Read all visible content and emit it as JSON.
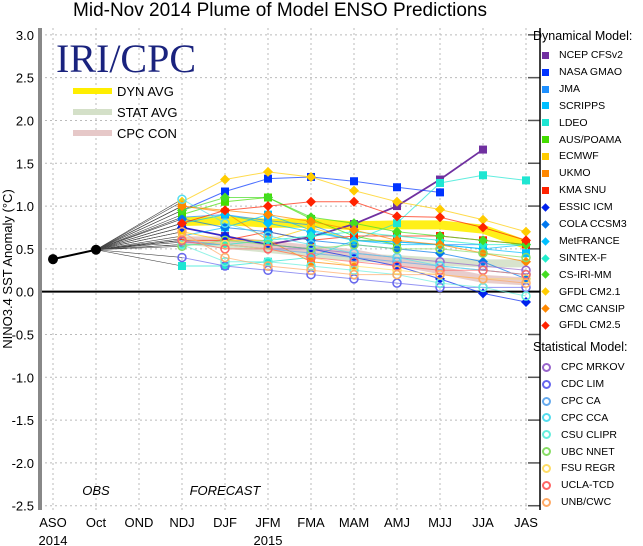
{
  "chart_data": {
    "type": "line",
    "title": "Mid-Nov 2014 Plume of Model ENSO Predictions",
    "ylabel": "NINO3.4 SST Anomaly (°C)",
    "xlabel": "",
    "ylim": [
      -2.55,
      3.08
    ],
    "yticks": [
      "3.0",
      "2.5",
      "2.0",
      "1.5",
      "1.0",
      "0.5",
      "0.0",
      "-0.5",
      "-1.0",
      "-1.5",
      "-2.0",
      "-2.5"
    ],
    "ytick_values": [
      3.0,
      2.5,
      2.0,
      1.5,
      1.0,
      0.5,
      0.0,
      -0.5,
      -1.0,
      -1.5,
      -2.0,
      -2.5
    ],
    "categories": [
      "ASO",
      "Oct",
      "OND",
      "NDJ",
      "DJF",
      "JFM",
      "FMA",
      "MAM",
      "AMJ",
      "MJJ",
      "JJA",
      "JAS"
    ],
    "year_labels": [
      {
        "text": "2014",
        "at": "ASO"
      },
      {
        "text": "2015",
        "at": "JFM"
      }
    ],
    "grid": true,
    "logo": "IRI/CPC",
    "annotations": {
      "obs": "OBS",
      "forecast": "FORECAST"
    },
    "observed": {
      "name": "Observed",
      "color": "#000000",
      "values": [
        0.38,
        0.49
      ]
    },
    "averages": [
      {
        "name": "DYN AVG",
        "color": "#ffee00",
        "values": [
          0.82,
          0.83,
          0.8,
          0.8,
          0.77,
          0.78,
          0.78,
          0.73,
          0.55
        ]
      },
      {
        "name": "STAT AVG",
        "color": "#d4e0c8",
        "values": [
          0.6,
          0.55,
          0.5,
          0.45,
          0.4,
          0.38,
          0.35,
          0.33,
          0.33
        ]
      },
      {
        "name": "CPC CON",
        "color": "#e6c8c8",
        "values": [
          0.6,
          0.6,
          0.55,
          0.5,
          0.45,
          0.35,
          0.25,
          0.15,
          0.12
        ]
      }
    ],
    "dynamical_title": "Dynamical Model:",
    "statistical_title": "Statistical Model:",
    "forecast_start": "NDJ",
    "dynamical": [
      {
        "name": "NCEP CFSv2",
        "color": "#7030a0",
        "marker": "square",
        "values": [
          0.75,
          0.65,
          0.55,
          0.64,
          0.79,
          1.0,
          1.31,
          1.66,
          null
        ]
      },
      {
        "name": "NASA GMAO",
        "color": "#0033ff",
        "marker": "square",
        "values": [
          0.95,
          1.17,
          1.32,
          1.34,
          1.29,
          1.22,
          1.16,
          null,
          null
        ]
      },
      {
        "name": "JMA",
        "color": "#1e90ff",
        "marker": "square",
        "values": [
          0.87,
          0.9,
          0.83,
          0.78,
          0.6,
          0.58,
          0.55,
          0.55,
          null
        ]
      },
      {
        "name": "SCRIPPS",
        "color": "#00bfff",
        "marker": "square",
        "values": [
          0.65,
          0.75,
          0.9,
          0.72,
          0.6,
          0.55,
          0.55,
          0.5,
          0.45
        ]
      },
      {
        "name": "LDEO",
        "color": "#1ee6d2",
        "marker": "square",
        "values": [
          0.3,
          0.3,
          0.35,
          0.4,
          0.6,
          0.8,
          1.27,
          1.36,
          1.3
        ]
      },
      {
        "name": "AUS/POAMA",
        "color": "#44dd00",
        "marker": "square",
        "values": [
          0.9,
          1.05,
          1.1,
          0.85,
          0.65,
          0.55,
          null,
          null,
          null
        ]
      },
      {
        "name": "ECMWF",
        "color": "#ffcc00",
        "marker": "square",
        "values": [
          0.7,
          0.6,
          0.6,
          0.75,
          0.6,
          0.6,
          null,
          null,
          null
        ]
      },
      {
        "name": "UKMO",
        "color": "#ff8800",
        "marker": "square",
        "values": [
          1.0,
          0.93,
          0.6,
          0.35,
          0.3,
          null,
          null,
          null,
          null
        ]
      },
      {
        "name": "KMA SNU",
        "color": "#ff2200",
        "marker": "square",
        "values": [
          0.6,
          0.6,
          0.7,
          0.6,
          0.65,
          0.65,
          0.65,
          0.6,
          0.55
        ]
      },
      {
        "name": "ESSIC ICM",
        "color": "#0022ee",
        "marker": "diamond",
        "values": [
          0.75,
          0.65,
          0.55,
          0.5,
          0.4,
          0.3,
          0.15,
          -0.02,
          -0.12
        ]
      },
      {
        "name": "COLA CCSM3",
        "color": "#0077ee",
        "marker": "diamond",
        "values": [
          0.85,
          0.75,
          0.7,
          0.6,
          0.55,
          0.5,
          0.45,
          0.35,
          0.15
        ]
      },
      {
        "name": "MetFRANCE",
        "color": "#00c0ff",
        "marker": "diamond",
        "values": [
          0.8,
          0.9,
          0.8,
          0.7,
          0.6,
          0.58,
          0.55,
          0.5,
          0.55
        ]
      },
      {
        "name": "SINTEX-F",
        "color": "#22eecc",
        "marker": "diamond",
        "values": [
          0.55,
          0.55,
          0.6,
          0.65,
          0.7,
          0.65,
          0.6,
          0.55,
          0.55
        ]
      },
      {
        "name": "CS-IRI-MM",
        "color": "#44dd22",
        "marker": "diamond",
        "values": [
          0.95,
          1.1,
          1.1,
          0.87,
          0.8,
          0.7,
          0.65,
          0.6,
          0.55
        ]
      },
      {
        "name": "GFDL CM2.1",
        "color": "#ffcc00",
        "marker": "diamond",
        "values": [
          1.05,
          1.31,
          1.4,
          1.34,
          1.18,
          1.05,
          0.96,
          0.84,
          0.7
        ]
      },
      {
        "name": "CMC CANSIP",
        "color": "#ff8800",
        "marker": "diamond",
        "values": [
          1.0,
          0.95,
          0.9,
          0.82,
          0.72,
          0.6,
          0.55,
          0.45,
          0.35
        ]
      },
      {
        "name": "GFDL CM2.5",
        "color": "#ff2200",
        "marker": "diamond",
        "values": [
          0.8,
          0.95,
          1.0,
          1.05,
          1.05,
          0.88,
          0.87,
          0.75,
          0.6
        ]
      }
    ],
    "statistical": [
      {
        "name": "CPC MRKOV",
        "color": "#9966cc",
        "marker": "circle",
        "values": [
          0.58,
          0.55,
          0.5,
          0.5,
          0.45,
          0.4,
          0.35,
          0.3,
          0.25
        ]
      },
      {
        "name": "CDC LIM",
        "color": "#6666ee",
        "marker": "circle",
        "values": [
          0.4,
          0.3,
          0.25,
          0.2,
          0.15,
          0.1,
          0.05,
          0.05,
          0.05
        ]
      },
      {
        "name": "CPC CA",
        "color": "#66aaee",
        "marker": "circle",
        "values": [
          0.6,
          0.55,
          0.5,
          0.45,
          0.4,
          0.35,
          0.3,
          0.25,
          0.2
        ]
      },
      {
        "name": "CPC CCA",
        "color": "#55ddee",
        "marker": "circle",
        "values": [
          1.08,
          0.8,
          0.65,
          0.55,
          0.45,
          0.4,
          0.3,
          0.25,
          0.2
        ]
      },
      {
        "name": "CSU CLIPR",
        "color": "#66eedd",
        "marker": "circle",
        "values": [
          0.55,
          0.35,
          0.35,
          0.3,
          0.25,
          0.2,
          0.1,
          0.05,
          -0.05
        ]
      },
      {
        "name": "UBC NNET",
        "color": "#88dd66",
        "marker": "circle",
        "values": [
          0.53,
          0.6,
          0.55,
          0.5,
          0.55,
          0.5,
          0.5,
          0.45,
          0.4
        ]
      },
      {
        "name": "FSU REGR",
        "color": "#ffdd66",
        "marker": "circle",
        "values": [
          0.62,
          0.55,
          0.5,
          0.4,
          0.3,
          0.25,
          0.2,
          0.15,
          0.15
        ]
      },
      {
        "name": "UCLA-TCD",
        "color": "#ff6666",
        "marker": "circle",
        "values": [
          0.6,
          0.5,
          0.5,
          0.4,
          0.35,
          0.3,
          0.25,
          0.25,
          0.2
        ]
      },
      {
        "name": "UNB/CWC",
        "color": "#ffaa66",
        "marker": "circle",
        "values": [
          0.7,
          0.4,
          0.3,
          0.25,
          0.2,
          0.2,
          0.2,
          0.15,
          0.1
        ]
      }
    ]
  }
}
